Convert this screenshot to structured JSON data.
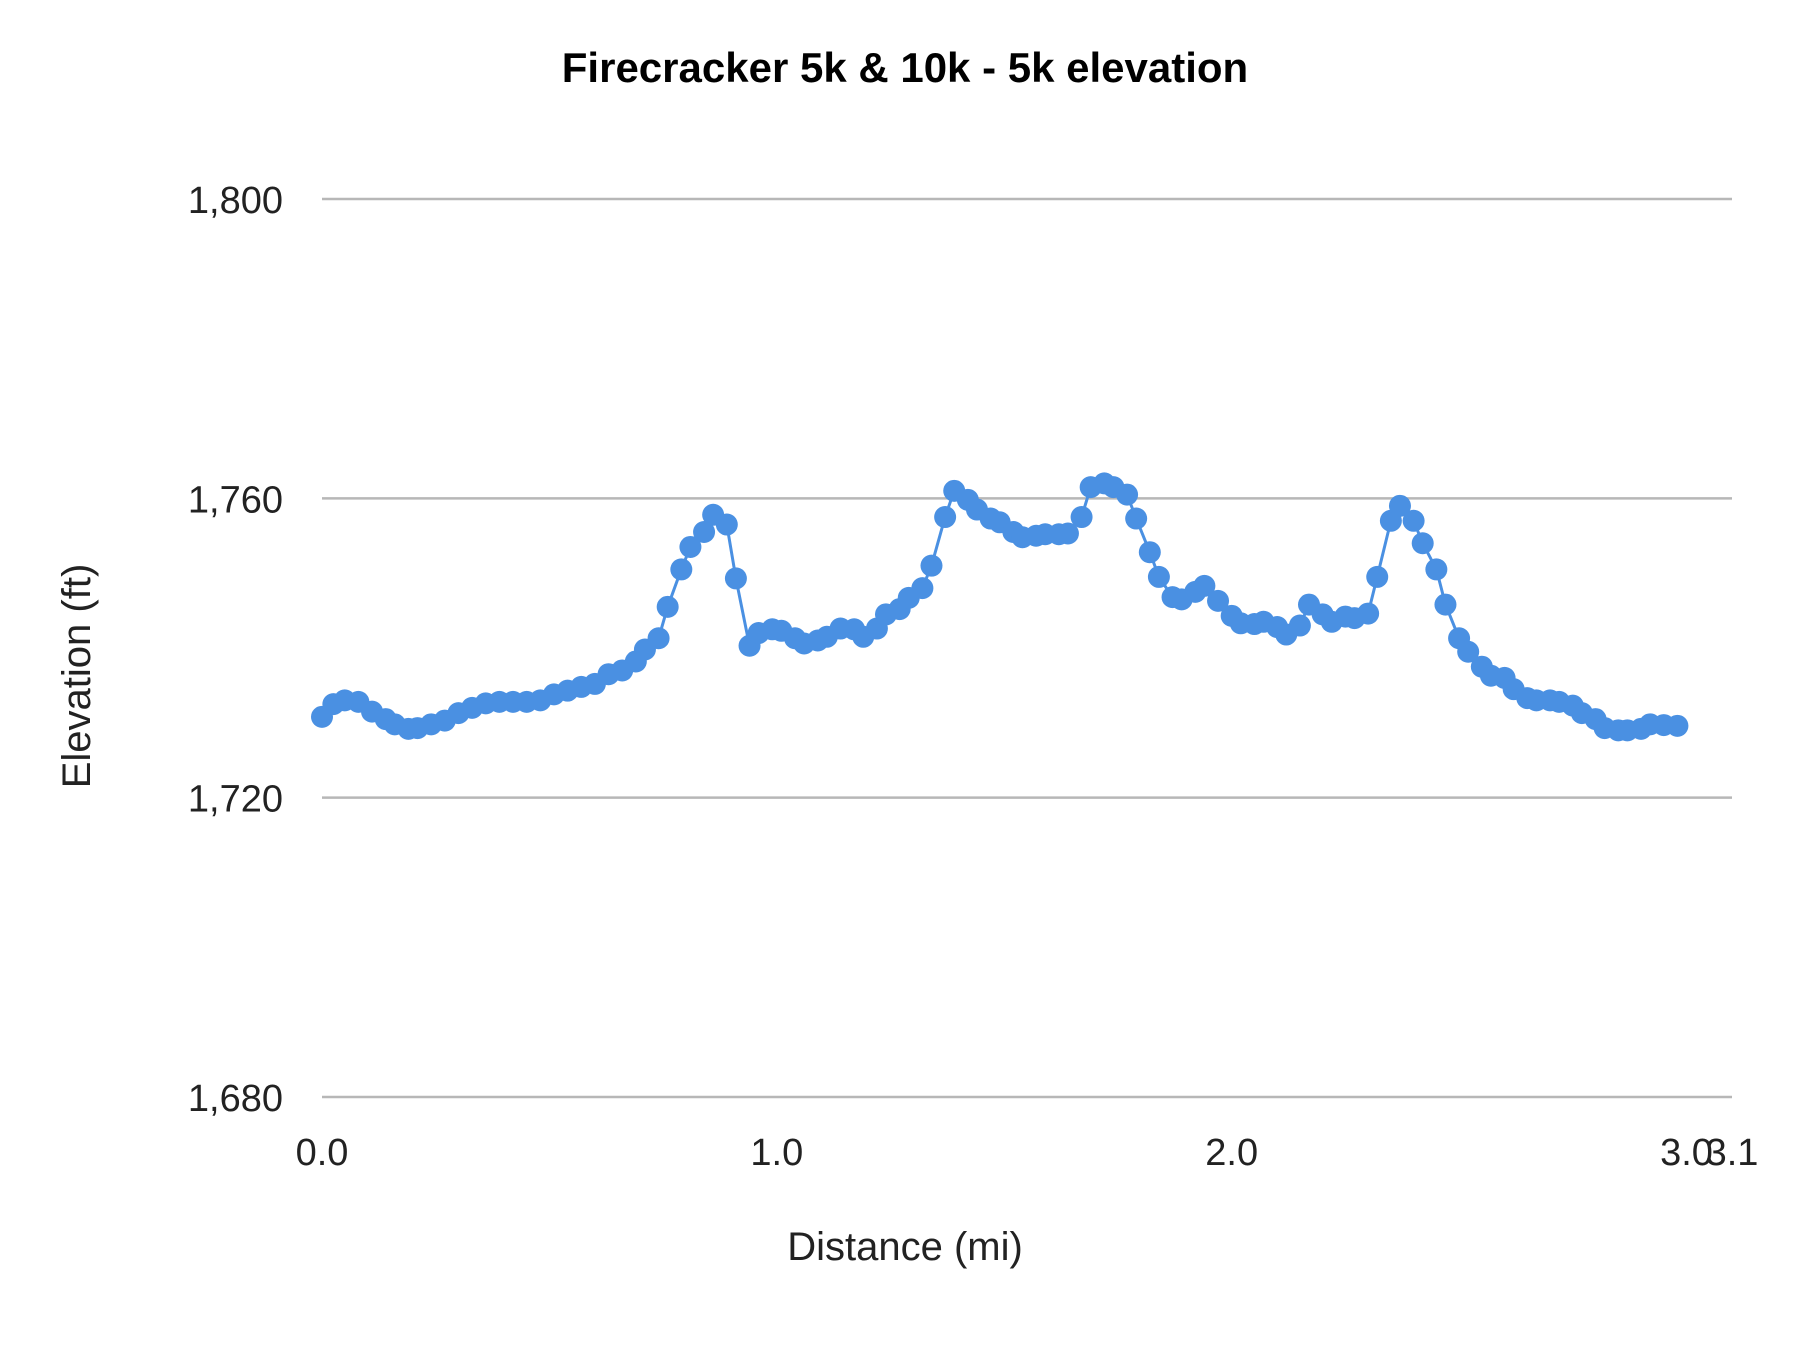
{
  "chart_data": {
    "type": "line",
    "title": "Firecracker 5k & 10k - 5k elevation",
    "xlabel": "Distance (mi)",
    "ylabel": "Elevation (ft)",
    "xlim": [
      0.0,
      3.1
    ],
    "ylim": [
      1680,
      1800
    ],
    "x_ticks": [
      {
        "value": 0.0,
        "label": "0.0"
      },
      {
        "value": 1.0,
        "label": "1.0"
      },
      {
        "value": 2.0,
        "label": "2.0"
      },
      {
        "value": 3.0,
        "label": "3.0"
      },
      {
        "value": 3.1,
        "label": "3.1"
      }
    ],
    "y_ticks": [
      {
        "value": 1680,
        "label": "1,680"
      },
      {
        "value": 1720,
        "label": "1,720"
      },
      {
        "value": 1760,
        "label": "1,760"
      },
      {
        "value": 1800,
        "label": "1,800"
      }
    ],
    "grid": true,
    "legend": "none",
    "series": [
      {
        "color": "#4a90e2",
        "markers": true,
        "points": [
          [
            0.0,
            1730.8
          ],
          [
            0.025,
            1732.5
          ],
          [
            0.05,
            1733.0
          ],
          [
            0.08,
            1732.8
          ],
          [
            0.11,
            1731.5
          ],
          [
            0.14,
            1730.5
          ],
          [
            0.16,
            1729.8
          ],
          [
            0.19,
            1729.2
          ],
          [
            0.21,
            1729.3
          ],
          [
            0.24,
            1729.8
          ],
          [
            0.27,
            1730.3
          ],
          [
            0.3,
            1731.3
          ],
          [
            0.33,
            1732.0
          ],
          [
            0.36,
            1732.6
          ],
          [
            0.39,
            1732.8
          ],
          [
            0.42,
            1732.8
          ],
          [
            0.45,
            1732.8
          ],
          [
            0.48,
            1733.0
          ],
          [
            0.51,
            1733.8
          ],
          [
            0.54,
            1734.3
          ],
          [
            0.57,
            1734.8
          ],
          [
            0.6,
            1735.2
          ],
          [
            0.63,
            1736.5
          ],
          [
            0.66,
            1737.0
          ],
          [
            0.69,
            1738.2
          ],
          [
            0.71,
            1739.8
          ],
          [
            0.74,
            1741.3
          ],
          [
            0.76,
            1745.5
          ],
          [
            0.79,
            1750.5
          ],
          [
            0.81,
            1753.5
          ],
          [
            0.84,
            1755.5
          ],
          [
            0.86,
            1757.8
          ],
          [
            0.89,
            1756.5
          ],
          [
            0.91,
            1749.3
          ],
          [
            0.94,
            1740.3
          ],
          [
            0.96,
            1742.0
          ],
          [
            0.99,
            1742.5
          ],
          [
            1.01,
            1742.3
          ],
          [
            1.04,
            1741.3
          ],
          [
            1.06,
            1740.6
          ],
          [
            1.09,
            1741.0
          ],
          [
            1.11,
            1741.5
          ],
          [
            1.14,
            1742.6
          ],
          [
            1.17,
            1742.5
          ],
          [
            1.19,
            1741.5
          ],
          [
            1.22,
            1742.6
          ],
          [
            1.24,
            1744.5
          ],
          [
            1.27,
            1745.2
          ],
          [
            1.29,
            1746.7
          ],
          [
            1.32,
            1748.0
          ],
          [
            1.34,
            1751.0
          ],
          [
            1.37,
            1757.5
          ],
          [
            1.39,
            1761.0
          ],
          [
            1.42,
            1759.8
          ],
          [
            1.44,
            1758.5
          ],
          [
            1.47,
            1757.3
          ],
          [
            1.49,
            1756.8
          ],
          [
            1.52,
            1755.5
          ],
          [
            1.54,
            1754.8
          ],
          [
            1.57,
            1755.0
          ],
          [
            1.59,
            1755.2
          ],
          [
            1.62,
            1755.2
          ],
          [
            1.64,
            1755.3
          ],
          [
            1.67,
            1757.5
          ],
          [
            1.69,
            1761.5
          ],
          [
            1.72,
            1762.0
          ],
          [
            1.74,
            1761.5
          ],
          [
            1.77,
            1760.5
          ],
          [
            1.79,
            1757.3
          ],
          [
            1.82,
            1752.8
          ],
          [
            1.84,
            1749.5
          ],
          [
            1.87,
            1746.8
          ],
          [
            1.89,
            1746.5
          ],
          [
            1.92,
            1747.5
          ],
          [
            1.94,
            1748.3
          ],
          [
            1.97,
            1746.3
          ],
          [
            2.0,
            1744.3
          ],
          [
            2.02,
            1743.3
          ],
          [
            2.05,
            1743.2
          ],
          [
            2.07,
            1743.5
          ],
          [
            2.1,
            1742.8
          ],
          [
            2.12,
            1741.8
          ],
          [
            2.15,
            1743.0
          ],
          [
            2.17,
            1745.8
          ],
          [
            2.2,
            1744.5
          ],
          [
            2.22,
            1743.5
          ],
          [
            2.25,
            1744.2
          ],
          [
            2.27,
            1744.0
          ],
          [
            2.3,
            1744.6
          ],
          [
            2.32,
            1749.5
          ],
          [
            2.35,
            1757.0
          ],
          [
            2.37,
            1759.0
          ],
          [
            2.4,
            1757.0
          ],
          [
            2.42,
            1754.0
          ],
          [
            2.45,
            1750.5
          ],
          [
            2.47,
            1745.8
          ],
          [
            2.5,
            1741.3
          ],
          [
            2.52,
            1739.5
          ],
          [
            2.55,
            1737.5
          ],
          [
            2.57,
            1736.3
          ],
          [
            2.6,
            1736.0
          ],
          [
            2.62,
            1734.5
          ],
          [
            2.65,
            1733.3
          ],
          [
            2.67,
            1733.0
          ],
          [
            2.7,
            1733.0
          ],
          [
            2.72,
            1732.8
          ],
          [
            2.75,
            1732.3
          ],
          [
            2.77,
            1731.3
          ],
          [
            2.8,
            1730.5
          ],
          [
            2.82,
            1729.3
          ],
          [
            2.85,
            1729.0
          ],
          [
            2.87,
            1729.0
          ],
          [
            2.9,
            1729.2
          ],
          [
            2.92,
            1729.8
          ],
          [
            2.95,
            1729.7
          ],
          [
            2.98,
            1729.6
          ]
        ]
      }
    ]
  }
}
